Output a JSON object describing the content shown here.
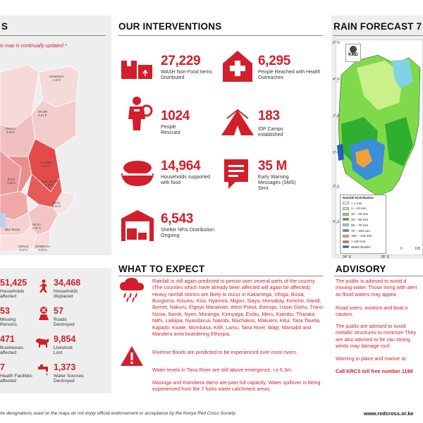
{
  "map_section": {
    "title": "S",
    "note": "is map is continually updated *",
    "counties": [
      {
        "name": "MANDERA",
        "value": "1.18 K"
      },
      {
        "name": "WAJIR",
        "value": "6.21 K"
      },
      {
        "name": "ISIOLO",
        "value": "3.42 K"
      },
      {
        "name": "GARISSA",
        "value": "5.21 K"
      },
      {
        "name": "KITUI",
        "value": "1.62 K"
      },
      {
        "name": "TANA RIVER",
        "value": "6.22 K"
      },
      {
        "name": "Lamu",
        "value": "0.41 K"
      },
      {
        "name": "KILIFI",
        "value": "2.57 K"
      },
      {
        "name": "Taita Taveta",
        "value": ""
      },
      {
        "name": "KWALE",
        "value": "0.37 K"
      },
      {
        "name": "MOMBASA",
        "value": "0.22 K"
      }
    ]
  },
  "interventions": {
    "title": "OUR INTERVENTIONS",
    "items": [
      {
        "value": "27,229",
        "label": "WASH Non-Food Items Distributed",
        "icon": "boxes-icon"
      },
      {
        "value": "6,295",
        "label": "People Reached with Health Outreaches",
        "icon": "health-house-icon"
      },
      {
        "value": "1024",
        "label": "People Rescued",
        "icon": "rescuer-icon"
      },
      {
        "value": "183",
        "label": "IDP Camps established",
        "icon": "tent-icon"
      },
      {
        "value": "14,964",
        "label": "Households supported with food",
        "icon": "food-bowl-icon"
      },
      {
        "value": "35 M",
        "label": "Early Warning Messages (SMS) Sent.",
        "icon": "sms-icon"
      },
      {
        "value": "6,543",
        "label": "Shelter NFIs Distribution Ongoing",
        "icon": "warehouse-icon"
      }
    ]
  },
  "impact": {
    "items": [
      {
        "value": "51,425",
        "label": "Households\naffected"
      },
      {
        "value": "34,468",
        "label": "Households\ndisplaced"
      },
      {
        "value": "53",
        "label": "Missing\nPersons"
      },
      {
        "value": "57",
        "label": "Roads\nDestroyed"
      },
      {
        "value": "471",
        "label": "Businesses\naffected"
      },
      {
        "value": "9,854",
        "label": "Livestock\nLost"
      },
      {
        "value": "7",
        "label": "Health Facilities\naffected"
      },
      {
        "value": "1,373",
        "label": "Water Sources\nDestroyed"
      }
    ]
  },
  "expect": {
    "title": "WHAT TO EXPECT",
    "para1": "Rainfall is still again predicted to persist over several parts of the country.  (The counties which have already been affected will again be affected). Heavy rainfall storms are likely to occur in Kakamega, Vihiga, Busia, Bungoma, Kisumu, Kisii, Nyamira, Migori, Siaya, Homabay, Kericho, Nandi, Bomet, Nakuru, Elgeyo Marakwet, West Pokot, Baringo, Uasin Gishu, Trans-Nzoia, Narok, Nyeri, Muranga, Kirinyaga, Embu, Meru, Kiambu, Tharaka Nithi, Laikipia, Nyandarua, Nairobi, Machakos, Makueni, Kitui, Taita Taveta, Kajiado, Kwale, Mombasa, Kilifi, Lamu, Tana River, Wajir, Marsabit and Mandera area boardering Ethiopia.",
    "para2": "Riverine floods are predicted to be experienced over most rivers.",
    "para3": "Water levels in Tana River are still above emergence, i.e 6.3m.",
    "para4": "Masinga and Kiambera dams are past full capacity. Water spillover is being experienced from the 7-forks water catchment areas."
  },
  "forecast": {
    "title": "RAIN FORECAST 7",
    "agency": "KMD",
    "legend_title": "Rainfall Distribution",
    "legend": [
      {
        "label": "< 1 mm",
        "color": "#ffffff"
      },
      {
        "label": "1 – 10 mm",
        "color": "#c9f08a"
      },
      {
        "label": "10 – 20 mm",
        "color": "#7fd94a"
      },
      {
        "label": "20 – 50 mm",
        "color": "#2fae2f"
      },
      {
        "label": "50 – 70 mm",
        "color": "#7fd3e6"
      },
      {
        "label": "70 – 100 mm",
        "color": "#3a8fd6"
      },
      {
        "label": "100 – 120 mm",
        "color": "#f2a13a"
      },
      {
        "label": "> 120 mm",
        "color": "#e6672a"
      },
      {
        "label": "Water Bodies",
        "color": "#1e5fbf"
      }
    ],
    "lat_labels": [
      "6° N",
      "4° N",
      "2° N",
      "0°",
      "2° S",
      "4° S"
    ],
    "lon_labels": [
      "34° E",
      "36° E"
    ],
    "scale_labels": [
      "0",
      "105"
    ]
  },
  "advisory": {
    "title": "ADVISORY",
    "para1": "The public is advised to avoid d moving water. Those living with alert as flood waters may appea",
    "para2": "Road-users, aviators and boat o caution.",
    "para3": "The public are advised to avoid metallic structures to minimize They are also advised to be cau strong winds may damage roof",
    "para4": "Warning in place and marine ac",
    "call": "Call KRCS toll free number 1199"
  },
  "footer": {
    "note": "he designations used on the maps do not imply official endorsement or acceptance by the Kenya Red Cross Society.",
    "url": "www.redcross.or.ke"
  },
  "colors": {
    "brand_red": "#d21f2b",
    "panel_gray": "#eeeeee"
  }
}
